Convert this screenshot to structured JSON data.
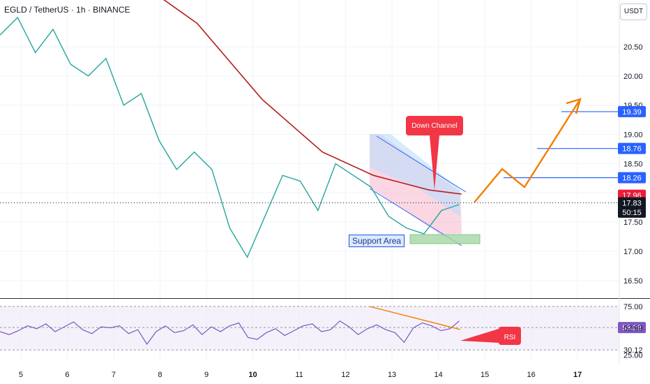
{
  "chart_data": [
    {
      "type": "line",
      "title": "EGLD / TetherUS · 1h · BINANCE",
      "unit_label": "USDT",
      "series": [
        {
          "values": [
            20.7,
            21.0,
            20.4,
            20.8,
            20.2,
            20.0,
            20.3,
            19.5,
            19.7,
            18.9,
            18.4,
            18.7,
            18.4,
            17.4,
            16.9,
            17.6,
            18.3,
            18.2,
            17.7,
            18.5,
            18.3,
            18.1,
            17.6,
            17.4,
            17.3,
            17.7,
            17.8
          ]
        }
      ],
      "x_ticks": [
        "5",
        "6",
        "7",
        "8",
        "9",
        "10",
        "11",
        "12",
        "13",
        "14",
        "15",
        "16",
        "17"
      ],
      "x_tick_values": [
        5,
        6,
        7,
        8,
        9,
        10,
        11,
        12,
        13,
        14,
        15,
        16,
        17
      ],
      "y_ticks": [
        "16.50",
        "17.00",
        "17.50",
        "18.00",
        "18.50",
        "19.00",
        "19.50",
        "20.00",
        "20.50"
      ],
      "y_tick_values": [
        16.5,
        17.0,
        17.5,
        18.0,
        18.5,
        19.0,
        19.5,
        20.0,
        20.5
      ],
      "ylim": [
        16.2,
        21.3
      ],
      "xlim": [
        4.55,
        17.9
      ],
      "price_labels": [
        {
          "text": "19.39",
          "value": 19.39,
          "color": "#2962ff"
        },
        {
          "text": "18.76",
          "value": 18.76,
          "color": "#2962ff"
        },
        {
          "text": "18.26",
          "value": 18.26,
          "color": "#2962ff"
        },
        {
          "text": "17.96",
          "value": 17.96,
          "color": "#e91e3c"
        },
        {
          "text": "17.83",
          "value": 17.83,
          "color": "#131722"
        },
        {
          "text": "50:15",
          "value": 17.67,
          "color": "#131722"
        }
      ],
      "annotations": [
        {
          "text": "Down Channel",
          "color": "#f23645"
        },
        {
          "text": "Support Area",
          "color": "#2962ff"
        }
      ],
      "moving_average_color": "#b71c1c",
      "projection_color": "#f57c00"
    },
    {
      "type": "line",
      "title": "",
      "series": [
        {
          "values": [
            49,
            46,
            50,
            55,
            52,
            57,
            49,
            54,
            59,
            51,
            47,
            54,
            53,
            55,
            47,
            51,
            36,
            49,
            55,
            48,
            50,
            56,
            46,
            54,
            49,
            55,
            58,
            43,
            41,
            48,
            52,
            45,
            50,
            55,
            57,
            49,
            51,
            60,
            54,
            46,
            52,
            56,
            51,
            48,
            38,
            53,
            58,
            55,
            50,
            52,
            60
          ]
        }
      ],
      "y_ticks": [
        "75.00",
        "53.28",
        "52.89",
        "30.12",
        "25.00"
      ],
      "y_tick_values": [
        75,
        53.28,
        52.89,
        30.12,
        25
      ],
      "ylim": [
        18,
        80
      ],
      "annotations": [
        {
          "text": "RSI",
          "color": "#f23645"
        }
      ],
      "line_color": "#7e57c2"
    }
  ]
}
